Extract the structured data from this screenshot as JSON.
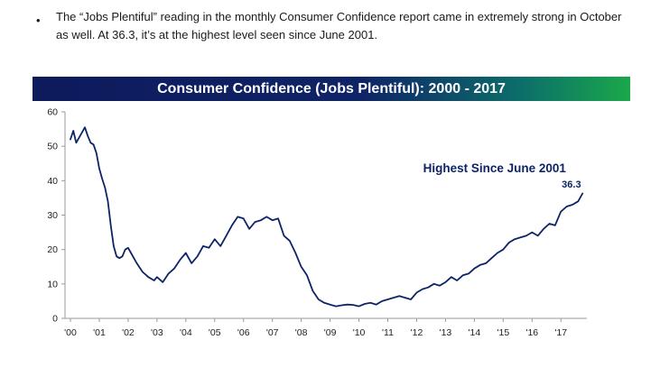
{
  "bullet": {
    "symbol": "•",
    "text": "The “Jobs Plentiful” reading in the monthly Consumer Confidence report came in extremely strong in October as well.  At 36.3, it’s at the highest level seen since June 2001."
  },
  "chart_data": {
    "type": "line",
    "title": "Consumer Confidence (Jobs Plentiful): 2000 - 2017",
    "xlabel": "",
    "ylabel": "",
    "xlim": [
      2000.0,
      2017.9
    ],
    "ylim": [
      0,
      60
    ],
    "yticks": [
      0,
      10,
      20,
      30,
      40,
      50,
      60
    ],
    "xtick_labels": [
      "'00",
      "'01",
      "'02",
      "'03",
      "'04",
      "'05",
      "'06",
      "'07",
      "'08",
      "'09",
      "'10",
      "'11",
      "'12",
      "'13",
      "'14",
      "'15",
      "'16",
      "'17"
    ],
    "grid": false,
    "line_color": "#0f2466",
    "series": [
      {
        "name": "Jobs Plentiful",
        "x": [
          2000.0,
          2000.1,
          2000.2,
          2000.3,
          2000.4,
          2000.5,
          2000.6,
          2000.7,
          2000.8,
          2000.9,
          2001.0,
          2001.1,
          2001.2,
          2001.3,
          2001.4,
          2001.5,
          2001.6,
          2001.7,
          2001.8,
          2001.9,
          2002.0,
          2002.1,
          2002.3,
          2002.5,
          2002.7,
          2002.9,
          2003.0,
          2003.2,
          2003.4,
          2003.6,
          2003.8,
          2004.0,
          2004.2,
          2004.4,
          2004.6,
          2004.8,
          2005.0,
          2005.2,
          2005.4,
          2005.6,
          2005.8,
          2006.0,
          2006.2,
          2006.4,
          2006.6,
          2006.8,
          2007.0,
          2007.2,
          2007.4,
          2007.6,
          2007.8,
          2008.0,
          2008.2,
          2008.4,
          2008.6,
          2008.8,
          2009.0,
          2009.2,
          2009.4,
          2009.6,
          2009.8,
          2010.0,
          2010.2,
          2010.4,
          2010.6,
          2010.8,
          2011.0,
          2011.2,
          2011.4,
          2011.6,
          2011.8,
          2012.0,
          2012.2,
          2012.4,
          2012.6,
          2012.8,
          2013.0,
          2013.2,
          2013.4,
          2013.6,
          2013.8,
          2014.0,
          2014.2,
          2014.4,
          2014.6,
          2014.8,
          2015.0,
          2015.2,
          2015.4,
          2015.6,
          2015.8,
          2016.0,
          2016.2,
          2016.4,
          2016.6,
          2016.8,
          2017.0,
          2017.2,
          2017.4,
          2017.6,
          2017.75
        ],
        "values": [
          52,
          54.5,
          51,
          52.5,
          54,
          55.5,
          53,
          51,
          50.5,
          48,
          43.5,
          40.5,
          38,
          34,
          27,
          21,
          18,
          17.5,
          18,
          20,
          20.5,
          19,
          16,
          13.5,
          12,
          11,
          12,
          10.5,
          13,
          14.5,
          17,
          19,
          16,
          18,
          21,
          20.5,
          23,
          21,
          24,
          27,
          29.5,
          29,
          26,
          28,
          28.5,
          29.5,
          28.5,
          29,
          24,
          22.5,
          19,
          15,
          12.5,
          8,
          5.5,
          4.5,
          4,
          3.5,
          3.8,
          4,
          3.9,
          3.5,
          4.2,
          4.5,
          4,
          5,
          5.5,
          6,
          6.5,
          6,
          5.5,
          7.5,
          8.5,
          9,
          10,
          9.5,
          10.5,
          12,
          11,
          12.5,
          13,
          14.5,
          15.5,
          16,
          17.5,
          19,
          20,
          22,
          23,
          23.5,
          24,
          25,
          24,
          26,
          27.5,
          27,
          31,
          32.5,
          33,
          34,
          36.3
        ]
      }
    ],
    "annotations": [
      {
        "text": "Highest Since June 2001",
        "x": 2014.7,
        "y": 42.5
      },
      {
        "text": "36.3",
        "x": 2017.7,
        "y": 38.0
      }
    ]
  }
}
